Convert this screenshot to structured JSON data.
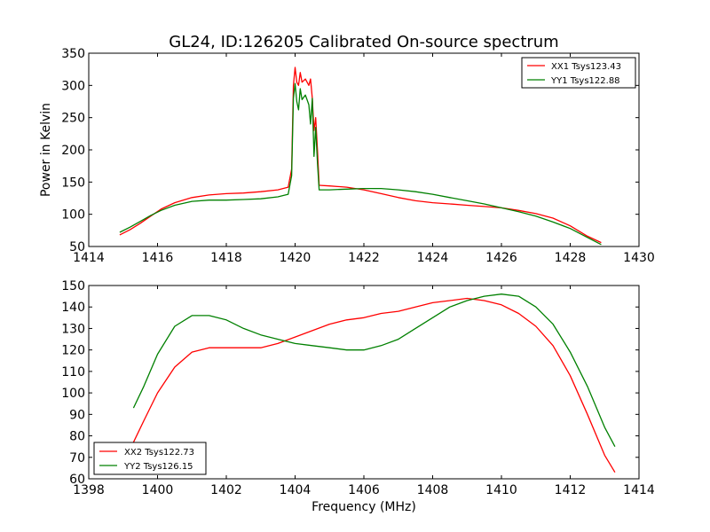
{
  "figure": {
    "title": "GL24, ID:126205 Calibrated On-source spectrum"
  },
  "chart_data": [
    {
      "type": "line",
      "ylabel": "Power in Kelvin",
      "xlabel": "",
      "xlim": [
        1414,
        1430
      ],
      "ylim": [
        50,
        350
      ],
      "xticks": [
        1414,
        1416,
        1418,
        1420,
        1422,
        1424,
        1426,
        1428,
        1430
      ],
      "yticks": [
        50,
        100,
        150,
        200,
        250,
        300,
        350
      ],
      "legend": {
        "position": "top-right"
      },
      "grid": false,
      "series": [
        {
          "name": "XX1 Tsys123.43",
          "color": "#ff0000",
          "points": [
            [
              1414.9,
              68
            ],
            [
              1415.2,
              76
            ],
            [
              1415.5,
              86
            ],
            [
              1415.8,
              97
            ],
            [
              1416.1,
              108
            ],
            [
              1416.5,
              118
            ],
            [
              1417.0,
              126
            ],
            [
              1417.5,
              130
            ],
            [
              1418.0,
              132
            ],
            [
              1418.5,
              133
            ],
            [
              1419.0,
              135
            ],
            [
              1419.5,
              138
            ],
            [
              1419.8,
              142
            ],
            [
              1419.9,
              170
            ],
            [
              1419.95,
              300
            ],
            [
              1420.0,
              328
            ],
            [
              1420.05,
              305
            ],
            [
              1420.1,
              300
            ],
            [
              1420.15,
              320
            ],
            [
              1420.2,
              305
            ],
            [
              1420.3,
              310
            ],
            [
              1420.4,
              300
            ],
            [
              1420.45,
              310
            ],
            [
              1420.5,
              280
            ],
            [
              1420.55,
              230
            ],
            [
              1420.6,
              250
            ],
            [
              1420.65,
              200
            ],
            [
              1420.7,
              145
            ],
            [
              1421.0,
              144
            ],
            [
              1421.5,
              142
            ],
            [
              1422.0,
              138
            ],
            [
              1422.5,
              132
            ],
            [
              1423.0,
              126
            ],
            [
              1423.5,
              121
            ],
            [
              1424.0,
              118
            ],
            [
              1424.5,
              116
            ],
            [
              1425.0,
              114
            ],
            [
              1425.5,
              112
            ],
            [
              1426.0,
              110
            ],
            [
              1426.5,
              106
            ],
            [
              1427.0,
              101
            ],
            [
              1427.5,
              94
            ],
            [
              1428.0,
              82
            ],
            [
              1428.5,
              66
            ],
            [
              1428.9,
              56
            ]
          ]
        },
        {
          "name": "YY1 Tsys122.88",
          "color": "#008000",
          "points": [
            [
              1414.9,
              72
            ],
            [
              1415.2,
              80
            ],
            [
              1415.5,
              89
            ],
            [
              1415.8,
              98
            ],
            [
              1416.1,
              106
            ],
            [
              1416.5,
              114
            ],
            [
              1417.0,
              120
            ],
            [
              1417.5,
              122
            ],
            [
              1418.0,
              122
            ],
            [
              1418.5,
              123
            ],
            [
              1419.0,
              124
            ],
            [
              1419.5,
              127
            ],
            [
              1419.8,
              131
            ],
            [
              1419.9,
              160
            ],
            [
              1419.95,
              280
            ],
            [
              1420.0,
              303
            ],
            [
              1420.05,
              275
            ],
            [
              1420.1,
              262
            ],
            [
              1420.15,
              295
            ],
            [
              1420.2,
              278
            ],
            [
              1420.3,
              285
            ],
            [
              1420.4,
              270
            ],
            [
              1420.45,
              240
            ],
            [
              1420.5,
              280
            ],
            [
              1420.55,
              190
            ],
            [
              1420.6,
              235
            ],
            [
              1420.65,
              180
            ],
            [
              1420.7,
              138
            ],
            [
              1421.0,
              138
            ],
            [
              1421.5,
              139
            ],
            [
              1422.0,
              140
            ],
            [
              1422.5,
              140
            ],
            [
              1423.0,
              138
            ],
            [
              1423.5,
              135
            ],
            [
              1424.0,
              131
            ],
            [
              1424.5,
              126
            ],
            [
              1425.0,
              121
            ],
            [
              1425.5,
              116
            ],
            [
              1426.0,
              110
            ],
            [
              1426.5,
              104
            ],
            [
              1427.0,
              97
            ],
            [
              1427.5,
              88
            ],
            [
              1428.0,
              78
            ],
            [
              1428.5,
              64
            ],
            [
              1428.9,
              53
            ]
          ]
        }
      ]
    },
    {
      "type": "line",
      "xlabel": "Frequency (MHz)",
      "ylabel": "",
      "xlim": [
        1398,
        1414
      ],
      "ylim": [
        60,
        150
      ],
      "xticks": [
        1398,
        1400,
        1402,
        1404,
        1406,
        1408,
        1410,
        1412,
        1414
      ],
      "yticks": [
        60,
        70,
        80,
        90,
        100,
        110,
        120,
        130,
        140,
        150
      ],
      "legend": {
        "position": "bottom-left"
      },
      "grid": false,
      "series": [
        {
          "name": "XX2 Tsys122.73",
          "color": "#ff0000",
          "points": [
            [
              1399.3,
              77
            ],
            [
              1399.6,
              87
            ],
            [
              1400.0,
              100
            ],
            [
              1400.5,
              112
            ],
            [
              1401.0,
              119
            ],
            [
              1401.5,
              121
            ],
            [
              1402.0,
              121
            ],
            [
              1402.5,
              121
            ],
            [
              1403.0,
              121
            ],
            [
              1403.5,
              123
            ],
            [
              1404.0,
              126
            ],
            [
              1404.5,
              129
            ],
            [
              1405.0,
              132
            ],
            [
              1405.5,
              134
            ],
            [
              1406.0,
              135
            ],
            [
              1406.5,
              137
            ],
            [
              1407.0,
              138
            ],
            [
              1407.5,
              140
            ],
            [
              1408.0,
              142
            ],
            [
              1408.5,
              143
            ],
            [
              1409.0,
              144
            ],
            [
              1409.5,
              143
            ],
            [
              1410.0,
              141
            ],
            [
              1410.5,
              137
            ],
            [
              1411.0,
              131
            ],
            [
              1411.5,
              122
            ],
            [
              1412.0,
              108
            ],
            [
              1412.5,
              90
            ],
            [
              1413.0,
              71
            ],
            [
              1413.3,
              63
            ]
          ]
        },
        {
          "name": "YY2 Tsys126.15",
          "color": "#008000",
          "points": [
            [
              1399.3,
              93
            ],
            [
              1399.6,
              103
            ],
            [
              1400.0,
              118
            ],
            [
              1400.5,
              131
            ],
            [
              1401.0,
              136
            ],
            [
              1401.5,
              136
            ],
            [
              1402.0,
              134
            ],
            [
              1402.5,
              130
            ],
            [
              1403.0,
              127
            ],
            [
              1403.5,
              125
            ],
            [
              1404.0,
              123
            ],
            [
              1404.5,
              122
            ],
            [
              1405.0,
              121
            ],
            [
              1405.5,
              120
            ],
            [
              1406.0,
              120
            ],
            [
              1406.5,
              122
            ],
            [
              1407.0,
              125
            ],
            [
              1407.5,
              130
            ],
            [
              1408.0,
              135
            ],
            [
              1408.5,
              140
            ],
            [
              1409.0,
              143
            ],
            [
              1409.5,
              145
            ],
            [
              1410.0,
              146
            ],
            [
              1410.5,
              145
            ],
            [
              1411.0,
              140
            ],
            [
              1411.5,
              132
            ],
            [
              1412.0,
              119
            ],
            [
              1412.5,
              103
            ],
            [
              1413.0,
              84
            ],
            [
              1413.3,
              75
            ]
          ]
        }
      ]
    }
  ]
}
